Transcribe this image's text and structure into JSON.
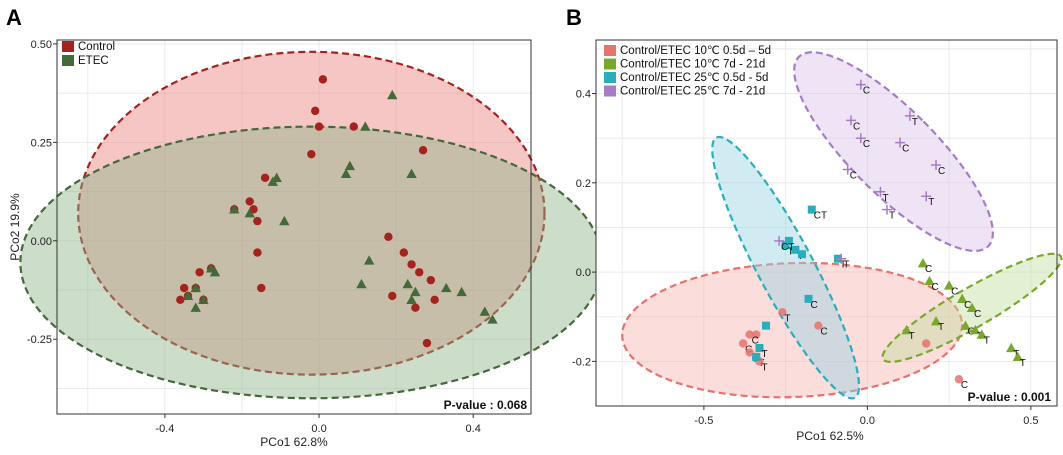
{
  "colors": {
    "control_dark": "#a5231e",
    "control_fill": "#e8817c",
    "etec_dark": "#44693a",
    "etec_fill": "#8fb38a",
    "b_red": "#e8726c",
    "b_green": "#7aa82c",
    "b_cyan": "#2aaebc",
    "b_purple": "#a77cc7"
  },
  "chart_data": [
    {
      "panel": "A",
      "type": "scatter",
      "title": "",
      "xlabel": "PCo1 62.8%",
      "ylabel": "PCo2 19.9%",
      "xlim": [
        -0.68,
        0.55
      ],
      "ylim": [
        -0.44,
        0.51
      ],
      "xticks": [
        -0.4,
        0.0,
        0.4
      ],
      "xtick_labels": [
        "-0.4",
        "0.0",
        "0.4"
      ],
      "yticks": [
        0.5,
        0.25,
        0.0,
        -0.25
      ],
      "ytick_labels": [
        "0.50",
        "0.25",
        "0.00",
        "-0.25"
      ],
      "grid": true,
      "legend": "top-left",
      "annotation": "P-value : 0.068",
      "series": [
        {
          "name": "Control",
          "marker": "circle",
          "color": "#a5231e",
          "points": [
            [
              0.01,
              0.41
            ],
            [
              -0.01,
              0.33
            ],
            [
              0.0,
              0.29
            ],
            [
              0.09,
              0.29
            ],
            [
              -0.02,
              0.22
            ],
            [
              0.27,
              0.23
            ],
            [
              -0.14,
              0.16
            ],
            [
              -0.18,
              0.1
            ],
            [
              -0.17,
              0.08
            ],
            [
              -0.22,
              0.08
            ],
            [
              -0.16,
              0.05
            ],
            [
              0.18,
              0.01
            ],
            [
              -0.16,
              -0.03
            ],
            [
              0.22,
              -0.03
            ],
            [
              -0.28,
              -0.07
            ],
            [
              -0.31,
              -0.08
            ],
            [
              0.24,
              -0.06
            ],
            [
              0.26,
              -0.08
            ],
            [
              -0.15,
              -0.12
            ],
            [
              0.29,
              -0.1
            ],
            [
              -0.32,
              -0.12
            ],
            [
              -0.35,
              -0.12
            ],
            [
              -0.3,
              -0.15
            ],
            [
              -0.36,
              -0.15
            ],
            [
              -0.34,
              -0.14
            ],
            [
              0.19,
              -0.14
            ],
            [
              0.3,
              -0.15
            ],
            [
              0.25,
              -0.17
            ],
            [
              0.28,
              -0.26
            ]
          ]
        },
        {
          "name": "ETEC",
          "marker": "triangle",
          "color": "#44693a",
          "points": [
            [
              0.19,
              0.37
            ],
            [
              0.12,
              0.29
            ],
            [
              -0.11,
              0.16
            ],
            [
              0.08,
              0.19
            ],
            [
              0.24,
              0.17
            ],
            [
              0.07,
              0.17
            ],
            [
              -0.12,
              0.15
            ],
            [
              -0.22,
              0.08
            ],
            [
              -0.18,
              0.07
            ],
            [
              -0.09,
              0.05
            ],
            [
              0.13,
              -0.05
            ],
            [
              -0.27,
              -0.08
            ],
            [
              -0.28,
              -0.07
            ],
            [
              0.11,
              -0.11
            ],
            [
              0.23,
              -0.11
            ],
            [
              -0.32,
              -0.12
            ],
            [
              0.25,
              -0.13
            ],
            [
              0.37,
              -0.13
            ],
            [
              0.33,
              -0.12
            ],
            [
              -0.34,
              -0.14
            ],
            [
              -0.3,
              -0.15
            ],
            [
              0.24,
              -0.15
            ],
            [
              -0.32,
              -0.17
            ],
            [
              0.43,
              -0.18
            ],
            [
              0.45,
              -0.2
            ]
          ]
        }
      ],
      "ellipses": [
        {
          "name": "Control",
          "center": [
            -0.02,
            0.07
          ],
          "rx": 0.605,
          "ry": 0.41,
          "fill": "#e8817c",
          "stroke": "#a5231e"
        },
        {
          "name": "ETEC",
          "center": [
            -0.02,
            -0.055
          ],
          "rx": 0.755,
          "ry": 0.345,
          "fill": "#8fb38a",
          "stroke": "#44693a"
        }
      ]
    },
    {
      "panel": "B",
      "type": "scatter",
      "title": "",
      "xlabel": "PCo1 62.5%",
      "ylabel": "",
      "xlim": [
        -0.83,
        0.58
      ],
      "ylim": [
        -0.3,
        0.52
      ],
      "xticks": [
        -0.5,
        0.0,
        0.5
      ],
      "xtick_labels": [
        "-0.5",
        "0.0",
        "0.5"
      ],
      "yticks": [
        0.4,
        0.2,
        0.0,
        -0.2
      ],
      "ytick_labels": [
        "0.4",
        "0.2",
        "0.0",
        "-0.2"
      ],
      "grid": true,
      "legend": "top-left",
      "annotation": "P-value : 0.001",
      "series": [
        {
          "name": "Control/ETEC 10℃ 0.5d – 5d",
          "marker": "circle",
          "color": "#e8726c",
          "points": [
            [
              -0.26,
              -0.09,
              "T"
            ],
            [
              -0.15,
              -0.12,
              "C"
            ],
            [
              -0.34,
              -0.14,
              ""
            ],
            [
              -0.36,
              -0.14,
              "C"
            ],
            [
              -0.38,
              -0.16,
              "C"
            ],
            [
              -0.36,
              -0.18,
              "C"
            ],
            [
              -0.34,
              -0.19,
              "T"
            ],
            [
              -0.33,
              -0.2,
              "T"
            ],
            [
              0.18,
              -0.16,
              ""
            ],
            [
              0.28,
              -0.24,
              "C"
            ]
          ]
        },
        {
          "name": "Control/ETEC 10℃ 7d - 21d",
          "marker": "triangle",
          "color": "#7aa82c",
          "points": [
            [
              0.17,
              0.02,
              "C"
            ],
            [
              0.19,
              -0.02,
              "C"
            ],
            [
              0.25,
              -0.03,
              "C"
            ],
            [
              0.29,
              -0.06,
              "C"
            ],
            [
              0.32,
              -0.08,
              "C"
            ],
            [
              0.21,
              -0.11,
              "T"
            ],
            [
              0.3,
              -0.12,
              "C"
            ],
            [
              0.33,
              -0.13,
              "T"
            ],
            [
              0.35,
              -0.14,
              "T"
            ],
            [
              0.12,
              -0.13,
              "T"
            ],
            [
              0.44,
              -0.17,
              "T"
            ],
            [
              0.46,
              -0.19,
              "T"
            ]
          ]
        },
        {
          "name": "Control/ETEC 25℃ 0.5d - 5d",
          "marker": "square",
          "color": "#2aaebc",
          "points": [
            [
              -0.17,
              0.14,
              "CT"
            ],
            [
              -0.24,
              0.07,
              ""
            ],
            [
              -0.25,
              0.06,
              "T"
            ],
            [
              -0.22,
              0.05,
              "T"
            ],
            [
              -0.09,
              0.03,
              "T"
            ],
            [
              -0.2,
              0.04,
              ""
            ],
            [
              -0.18,
              -0.06,
              "C"
            ],
            [
              -0.31,
              -0.12,
              ""
            ],
            [
              -0.33,
              -0.17,
              "T"
            ],
            [
              -0.34,
              -0.19,
              ""
            ]
          ]
        },
        {
          "name": "Control/ETEC 25℃ 7d - 21d",
          "marker": "cross",
          "color": "#a77cc7",
          "points": [
            [
              -0.02,
              0.42,
              "C"
            ],
            [
              -0.05,
              0.34,
              "C"
            ],
            [
              -0.02,
              0.3,
              "C"
            ],
            [
              0.13,
              0.35,
              "T"
            ],
            [
              0.1,
              0.29,
              "C"
            ],
            [
              0.21,
              0.24,
              "C"
            ],
            [
              -0.06,
              0.23,
              "C"
            ],
            [
              0.04,
              0.18,
              "T"
            ],
            [
              0.06,
              0.14,
              "T"
            ],
            [
              0.18,
              0.17,
              "T"
            ],
            [
              -0.27,
              0.07,
              "CT"
            ],
            [
              -0.08,
              0.03,
              "T"
            ]
          ]
        }
      ],
      "ellipses": [
        {
          "name": "Control/ETEC 10℃ 0.5d – 5d",
          "center": [
            -0.23,
            -0.13
          ],
          "rx": 0.52,
          "ry": 0.15,
          "rot": 2,
          "fill": "#f7b4b0",
          "stroke": "#e8726c"
        },
        {
          "name": "Control/ETEC 25℃ 7d - 21d",
          "center": [
            0.08,
            0.27
          ],
          "rx": 0.13,
          "ry": 0.3,
          "rot": 45,
          "fill": "#dcc4ec",
          "stroke": "#a77cc7"
        },
        {
          "name": "Control/ETEC 25℃ 0.5d - 5d",
          "center": [
            -0.25,
            0.01
          ],
          "rx": 0.085,
          "ry": 0.33,
          "rot": 28,
          "fill": "#9ad3e2",
          "stroke": "#2aaebc"
        },
        {
          "name": "Control/ETEC 10℃ 7d - 21d",
          "center": [
            0.32,
            -0.08
          ],
          "rx": 0.06,
          "ry": 0.23,
          "rot": -60,
          "fill": "#c4dea0",
          "stroke": "#7aa82c"
        }
      ]
    }
  ],
  "panel_labels": [
    "A",
    "B"
  ]
}
